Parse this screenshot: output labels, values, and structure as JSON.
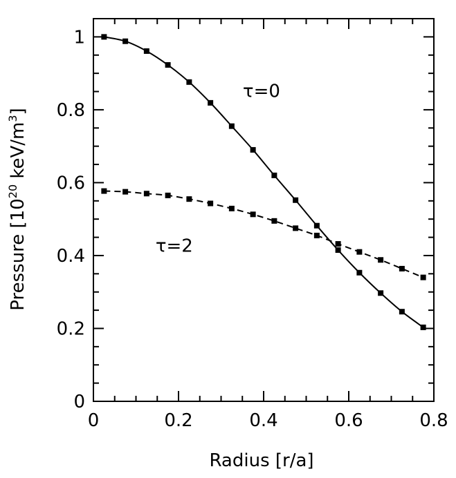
{
  "chart_data": {
    "type": "line",
    "xlabel": "Radius [r/a]",
    "ylabel_prefix": "Pressure [10",
    "ylabel_exp1": "20",
    "ylabel_mid": " keV/m",
    "ylabel_exp2": "3",
    "ylabel_suffix": "]",
    "xlim": [
      0,
      0.8
    ],
    "ylim": [
      0,
      1.05
    ],
    "xticks": [
      "0",
      "0.2",
      "0.4",
      "0.6",
      "0.8"
    ],
    "yticks": [
      "0",
      "0.2",
      "0.4",
      "0.6",
      "0.8",
      "1"
    ],
    "grid": false,
    "series": [
      {
        "style": "solid",
        "x": [
          0.025,
          0.075,
          0.125,
          0.175,
          0.225,
          0.275,
          0.325,
          0.375,
          0.425,
          0.475,
          0.525,
          0.575,
          0.625,
          0.675,
          0.725,
          0.775
        ],
        "y": [
          1.0,
          0.988,
          0.961,
          0.923,
          0.876,
          0.819,
          0.755,
          0.69,
          0.62,
          0.552,
          0.482,
          0.415,
          0.353,
          0.297,
          0.246,
          0.203
        ]
      },
      {
        "style": "dashed",
        "x": [
          0.025,
          0.075,
          0.125,
          0.175,
          0.225,
          0.275,
          0.325,
          0.375,
          0.425,
          0.475,
          0.525,
          0.575,
          0.625,
          0.675,
          0.725,
          0.775
        ],
        "y": [
          0.577,
          0.575,
          0.57,
          0.565,
          0.555,
          0.543,
          0.529,
          0.513,
          0.495,
          0.475,
          0.455,
          0.432,
          0.41,
          0.388,
          0.364,
          0.34
        ]
      }
    ],
    "annotations": [
      {
        "text": "τ=0",
        "x": 0.395,
        "y": 0.835
      },
      {
        "text": "τ=2",
        "x": 0.19,
        "y": 0.41
      }
    ]
  }
}
